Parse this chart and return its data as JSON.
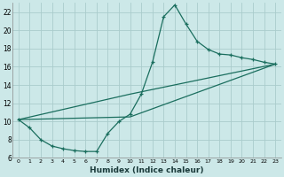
{
  "xlabel": "Humidex (Indice chaleur)",
  "bg_color": "#cce8e8",
  "grid_color": "#aacccc",
  "line_color": "#1a6e5e",
  "xlim": [
    -0.5,
    23.5
  ],
  "ylim": [
    6,
    23
  ],
  "xticks": [
    0,
    1,
    2,
    3,
    4,
    5,
    6,
    7,
    8,
    9,
    10,
    11,
    12,
    13,
    14,
    15,
    16,
    17,
    18,
    19,
    20,
    21,
    22,
    23
  ],
  "yticks": [
    6,
    8,
    10,
    12,
    14,
    16,
    18,
    20,
    22
  ],
  "curve1_x": [
    0,
    1,
    2,
    3,
    4,
    5,
    6,
    7,
    8,
    9,
    10,
    11,
    12,
    13,
    14,
    15,
    16,
    17,
    18,
    19,
    20,
    21,
    22,
    23
  ],
  "curve1_y": [
    10.2,
    9.3,
    8.0,
    7.3,
    7.0,
    6.8,
    6.7,
    6.7,
    8.7,
    10.0,
    10.8,
    13.0,
    16.5,
    21.5,
    22.8,
    20.7,
    18.8,
    17.9,
    17.4,
    17.3,
    17.0,
    16.8,
    16.5,
    16.3
  ],
  "curve2_x": [
    0,
    23
  ],
  "curve2_y": [
    10.2,
    16.3
  ],
  "curve3_x": [
    0,
    23
  ],
  "curve3_y": [
    10.2,
    16.3
  ],
  "line2_x": [
    0,
    10,
    23
  ],
  "line2_y": [
    10.2,
    13.0,
    16.3
  ],
  "line3_x": [
    0,
    10,
    23
  ],
  "line3_y": [
    10.2,
    10.5,
    16.3
  ]
}
